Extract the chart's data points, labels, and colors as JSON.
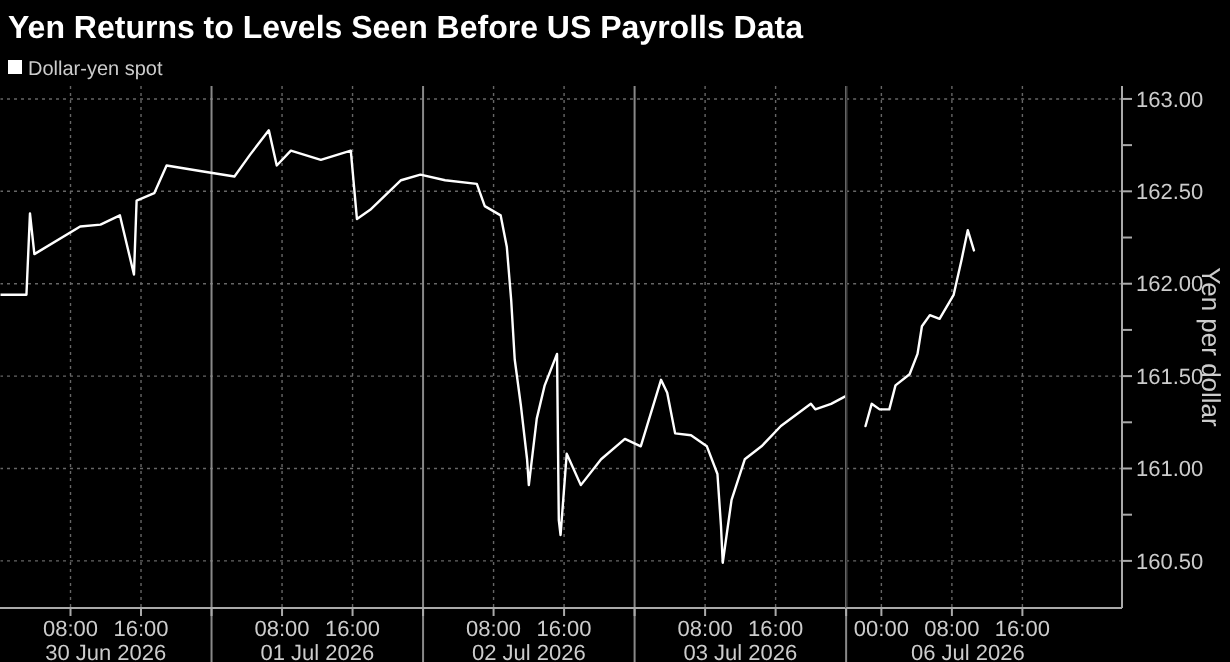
{
  "chart_data": [
    {
      "type": "line",
      "title": "Yen Returns to Levels Seen Before US Payrolls Data",
      "legend": "top left",
      "grid": true,
      "marker": "none",
      "line_style": "solid",
      "tick_labels": "x",
      "xlim": [
        "2026-06-30T00:00",
        "2026-07-04T00:00"
      ],
      "ylim": [
        160.245,
        163.07
      ],
      "xticks": [
        {
          "value": "2026-06-30T08:00",
          "label": "08:00"
        },
        {
          "value": "2026-06-30T16:00",
          "label": "16:00"
        },
        {
          "value": "2026-07-01",
          "label": null
        },
        {
          "value": "2026-07-01T08:00",
          "label": "08:00"
        },
        {
          "value": "2026-07-01T16:00",
          "label": "16:00"
        },
        {
          "value": "2026-07-02",
          "label": null
        },
        {
          "value": "2026-07-02T08:00",
          "label": "08:00"
        },
        {
          "value": "2026-07-02T16:00",
          "label": "16:00"
        },
        {
          "value": "2026-07-03",
          "label": null
        },
        {
          "value": "2026-07-03T08:00",
          "label": "08:00"
        },
        {
          "value": "2026-07-03T16:00",
          "label": "16:00"
        },
        {
          "value": "2026-07-04",
          "label": null
        }
      ],
      "x2lim": [
        "2026-06-30T00:00",
        "2026-07-04T00:00"
      ],
      "x2ticks": [
        {
          "value": "2026-06-30T12:00",
          "label": "30 Jun 2026"
        },
        {
          "value": "2026-07-01T12:00",
          "label": "01 Jul 2026"
        },
        {
          "value": "2026-07-02T12:00",
          "label": "02 Jul 2026"
        },
        {
          "value": "2026-07-03T12:00",
          "label": "03 Jul 2026"
        }
      ],
      "yticks": [
        160.5,
        161,
        161.5,
        162,
        162.5,
        163
      ],
      "series": [
        {
          "name": "Dollar-yen spot",
          "color": "#ffffff",
          "x": [
            "2026-06-30T00:00",
            "2026-06-30T03:00",
            "2026-06-30T03:24",
            "2026-06-30T03:54",
            "2026-06-30T09:06",
            "2026-06-30T11:24",
            "2026-06-30T13:36",
            "2026-06-30T15:12",
            "2026-06-30T15:30",
            "2026-06-30T17:30",
            "2026-06-30T18:54",
            "2026-06-30T22:42",
            "2026-07-01T02:36",
            "2026-07-01T04:24",
            "2026-07-01T06:30",
            "2026-07-01T07:24",
            "2026-07-01T09:00",
            "2026-07-01T12:24",
            "2026-07-01T15:48",
            "2026-07-01T16:30",
            "2026-07-01T18:00",
            "2026-07-01T21:30",
            "2026-07-01T23:42",
            "2026-07-02T02:30",
            "2026-07-02T06:06",
            "2026-07-02T07:00",
            "2026-07-02T08:48",
            "2026-07-02T09:30",
            "2026-07-02T10:00",
            "2026-07-02T10:24",
            "2026-07-02T11:06",
            "2026-07-02T11:48",
            "2026-07-02T12:00",
            "2026-07-02T12:54",
            "2026-07-02T13:48",
            "2026-07-02T15:12",
            "2026-07-02T15:24",
            "2026-07-02T15:36",
            "2026-07-02T16:18",
            "2026-07-02T17:54",
            "2026-07-02T20:12",
            "2026-07-02T22:54",
            "2026-07-03T00:42",
            "2026-07-03T03:00",
            "2026-07-03T03:42",
            "2026-07-03T04:36",
            "2026-07-03T06:24",
            "2026-07-03T08:12",
            "2026-07-03T09:24",
            "2026-07-03T09:48",
            "2026-07-03T10:00",
            "2026-07-03T11:00",
            "2026-07-03T12:30",
            "2026-07-03T14:24",
            "2026-07-03T16:36",
            "2026-07-03T20:00",
            "2026-07-03T20:30",
            "2026-07-03T22:18",
            "2026-07-03T23:54"
          ],
          "values": [
            161.94,
            161.94,
            162.38,
            162.16,
            162.31,
            162.32,
            162.37,
            162.05,
            162.45,
            162.49,
            162.64,
            162.61,
            162.58,
            162.7,
            162.83,
            162.64,
            162.72,
            162.67,
            162.72,
            162.35,
            162.4,
            162.56,
            162.59,
            162.56,
            162.54,
            162.42,
            162.37,
            162.2,
            161.91,
            161.59,
            161.34,
            161.05,
            160.91,
            161.27,
            161.45,
            161.62,
            160.72,
            160.64,
            161.08,
            160.91,
            161.05,
            161.16,
            161.12,
            161.48,
            161.41,
            161.19,
            161.18,
            161.12,
            160.97,
            160.69,
            160.49,
            160.83,
            161.05,
            161.12,
            161.23,
            161.35,
            161.32,
            161.35,
            161.39
          ]
        }
      ]
    },
    {
      "type": "line",
      "ylabel": "Yen per dollar",
      "grid": true,
      "marker": "none",
      "line_style": "solid",
      "xlim": [
        "2026-07-05T20:00",
        "2026-07-07T03:18"
      ],
      "ylim": [
        160.245,
        163.07
      ],
      "xticks": [
        {
          "value": "2026-07-06T00:00",
          "label": "00:00"
        },
        {
          "value": "2026-07-06T08:00",
          "label": "08:00"
        },
        {
          "value": "2026-07-06T16:00",
          "label": "16:00"
        }
      ],
      "annotations": [
        "06 Jul 2026"
      ],
      "yticks": [
        {
          "value": 160.5,
          "label": "160.50"
        },
        {
          "value": 160.75,
          "label": null
        },
        {
          "value": 161,
          "label": "161.00"
        },
        {
          "value": 161.25,
          "label": null
        },
        {
          "value": 161.5,
          "label": "161.50"
        },
        {
          "value": 161.75,
          "label": null
        },
        {
          "value": 162,
          "label": "162.00"
        },
        {
          "value": 162.25,
          "label": null
        },
        {
          "value": 162.5,
          "label": "162.50"
        },
        {
          "value": 162.75,
          "label": null
        },
        {
          "value": 163,
          "label": "163.00"
        }
      ],
      "series": [
        {
          "color": "#ffffff",
          "x": [
            "2026-07-05T22:12",
            "2026-07-05T22:54",
            "2026-07-05T23:48",
            "2026-07-06T00:54",
            "2026-07-06T01:36",
            "2026-07-06T03:12",
            "2026-07-06T04:06",
            "2026-07-06T04:36",
            "2026-07-06T05:30",
            "2026-07-06T06:36",
            "2026-07-06T08:12",
            "2026-07-06T09:06",
            "2026-07-06T09:48",
            "2026-07-06T10:30"
          ],
          "values": [
            161.23,
            161.35,
            161.32,
            161.32,
            161.45,
            161.51,
            161.62,
            161.77,
            161.83,
            161.81,
            161.94,
            162.13,
            162.29,
            162.18
          ]
        }
      ]
    }
  ]
}
